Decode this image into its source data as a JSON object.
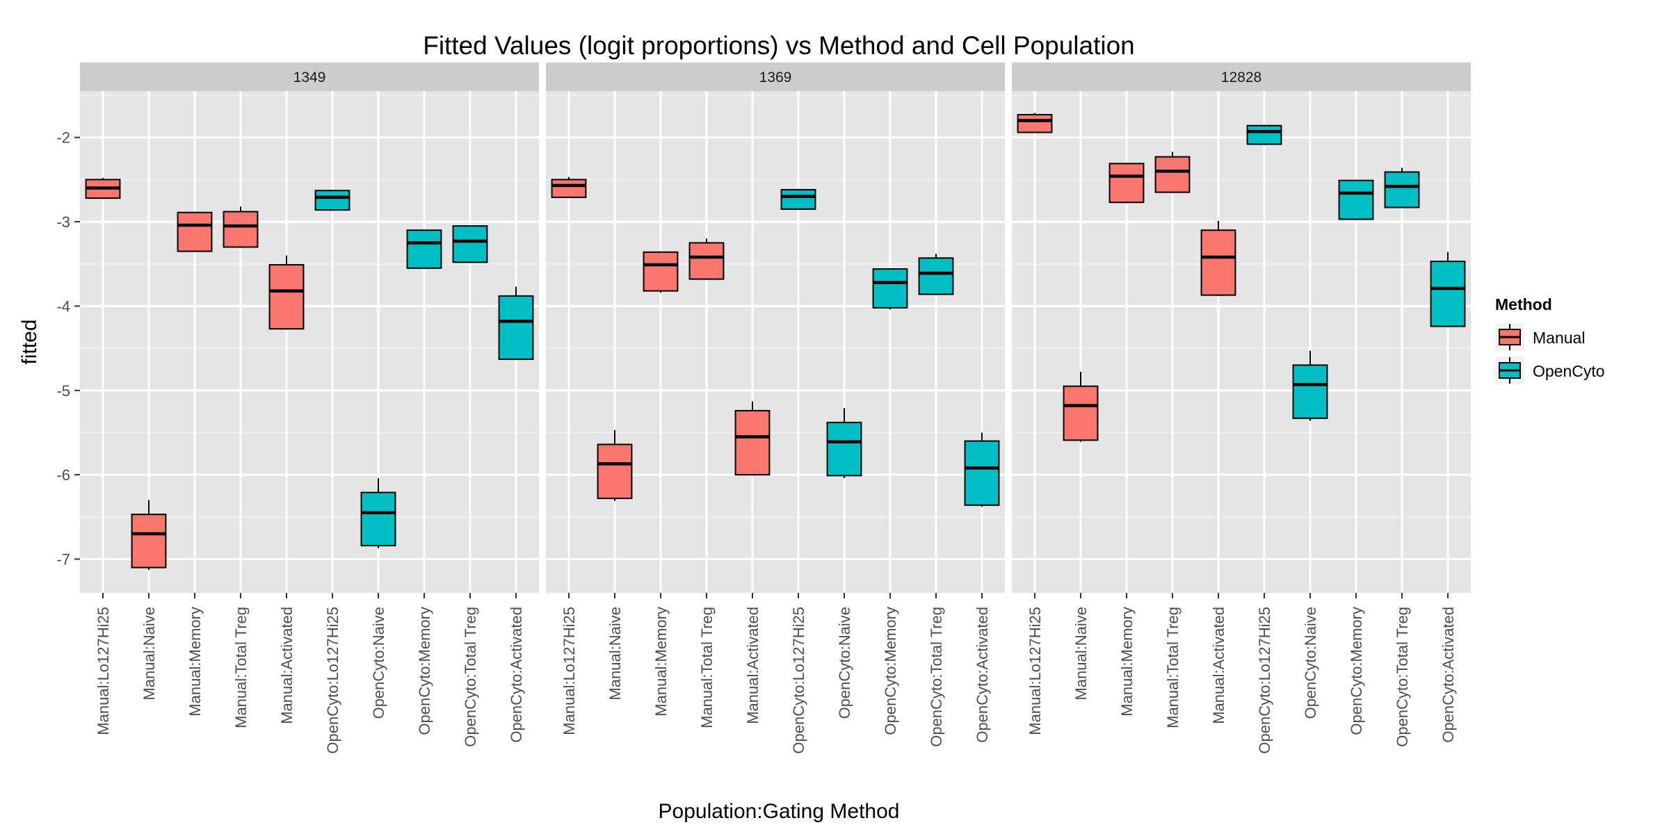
{
  "chart_data": {
    "type": "box",
    "title": "Fitted Values (logit proportions) vs Method and Cell Population",
    "xlabel": "Population:Gating Method",
    "ylabel": "fitted",
    "ylim": [
      -7.4,
      -1.45
    ],
    "yticks": [
      -7,
      -6,
      -5,
      -4,
      -3,
      -2
    ],
    "ytick_labels": [
      "-7",
      "-6",
      "-5",
      "-4",
      "-3",
      "-2"
    ],
    "grid": true,
    "categories": [
      "Manual:Lo127Hi25",
      "Manual:Naive",
      "Manual:Memory",
      "Manual:Total Treg",
      "Manual:Activated",
      "OpenCyto:Lo127Hi25",
      "OpenCyto:Naive",
      "OpenCyto:Memory",
      "OpenCyto:Total Treg",
      "OpenCyto:Activated"
    ],
    "category_method": [
      "Manual",
      "Manual",
      "Manual",
      "Manual",
      "Manual",
      "OpenCyto",
      "OpenCyto",
      "OpenCyto",
      "OpenCyto",
      "OpenCyto"
    ],
    "legend": {
      "title": "Method",
      "position": "right",
      "items": [
        {
          "label": "Manual",
          "color": "#f8766d"
        },
        {
          "label": "OpenCyto",
          "color": "#00bfc4"
        }
      ]
    },
    "panels": [
      {
        "label": "1349",
        "boxes": [
          {
            "lower_whisker": -2.73,
            "q1": -2.72,
            "median": -2.6,
            "q3": -2.5,
            "upper_whisker": -2.48
          },
          {
            "lower_whisker": -7.13,
            "q1": -7.1,
            "median": -6.7,
            "q3": -6.47,
            "upper_whisker": -6.3
          },
          {
            "lower_whisker": -3.36,
            "q1": -3.35,
            "median": -3.04,
            "q3": -2.89,
            "upper_whisker": -2.88
          },
          {
            "lower_whisker": -3.31,
            "q1": -3.3,
            "median": -3.05,
            "q3": -2.88,
            "upper_whisker": -2.82
          },
          {
            "lower_whisker": -4.28,
            "q1": -4.27,
            "median": -3.82,
            "q3": -3.51,
            "upper_whisker": -3.4
          },
          {
            "lower_whisker": -2.87,
            "q1": -2.86,
            "median": -2.71,
            "q3": -2.63,
            "upper_whisker": -2.62
          },
          {
            "lower_whisker": -6.87,
            "q1": -6.84,
            "median": -6.45,
            "q3": -6.21,
            "upper_whisker": -6.04
          },
          {
            "lower_whisker": -3.56,
            "q1": -3.55,
            "median": -3.25,
            "q3": -3.1,
            "upper_whisker": -3.09
          },
          {
            "lower_whisker": -3.49,
            "q1": -3.48,
            "median": -3.23,
            "q3": -3.05,
            "upper_whisker": -3.05
          },
          {
            "lower_whisker": -4.64,
            "q1": -4.63,
            "median": -4.18,
            "q3": -3.88,
            "upper_whisker": -3.77
          }
        ]
      },
      {
        "label": "1369",
        "boxes": [
          {
            "lower_whisker": -2.72,
            "q1": -2.71,
            "median": -2.57,
            "q3": -2.5,
            "upper_whisker": -2.47
          },
          {
            "lower_whisker": -6.31,
            "q1": -6.28,
            "median": -5.87,
            "q3": -5.64,
            "upper_whisker": -5.47
          },
          {
            "lower_whisker": -3.84,
            "q1": -3.82,
            "median": -3.51,
            "q3": -3.36,
            "upper_whisker": -3.35
          },
          {
            "lower_whisker": -3.69,
            "q1": -3.68,
            "median": -3.42,
            "q3": -3.25,
            "upper_whisker": -3.2
          },
          {
            "lower_whisker": -6.01,
            "q1": -6.0,
            "median": -5.55,
            "q3": -5.24,
            "upper_whisker": -5.13
          },
          {
            "lower_whisker": -2.86,
            "q1": -2.85,
            "median": -2.7,
            "q3": -2.62,
            "upper_whisker": -2.61
          },
          {
            "lower_whisker": -6.04,
            "q1": -6.01,
            "median": -5.61,
            "q3": -5.38,
            "upper_whisker": -5.21
          },
          {
            "lower_whisker": -4.04,
            "q1": -4.02,
            "median": -3.72,
            "q3": -3.56,
            "upper_whisker": -3.55
          },
          {
            "lower_whisker": -3.87,
            "q1": -3.86,
            "median": -3.61,
            "q3": -3.43,
            "upper_whisker": -3.38
          },
          {
            "lower_whisker": -6.38,
            "q1": -6.36,
            "median": -5.92,
            "q3": -5.6,
            "upper_whisker": -5.5
          }
        ]
      },
      {
        "label": "12828",
        "boxes": [
          {
            "lower_whisker": -1.95,
            "q1": -1.94,
            "median": -1.8,
            "q3": -1.73,
            "upper_whisker": -1.71
          },
          {
            "lower_whisker": -5.61,
            "q1": -5.59,
            "median": -5.18,
            "q3": -4.95,
            "upper_whisker": -4.78
          },
          {
            "lower_whisker": -2.78,
            "q1": -2.77,
            "median": -2.46,
            "q3": -2.31,
            "upper_whisker": -2.3
          },
          {
            "lower_whisker": -2.66,
            "q1": -2.65,
            "median": -2.4,
            "q3": -2.23,
            "upper_whisker": -2.17
          },
          {
            "lower_whisker": -3.88,
            "q1": -3.87,
            "median": -3.42,
            "q3": -3.1,
            "upper_whisker": -2.99
          },
          {
            "lower_whisker": -2.09,
            "q1": -2.08,
            "median": -1.93,
            "q3": -1.86,
            "upper_whisker": -1.85
          },
          {
            "lower_whisker": -5.36,
            "q1": -5.33,
            "median": -4.93,
            "q3": -4.7,
            "upper_whisker": -4.53
          },
          {
            "lower_whisker": -2.98,
            "q1": -2.97,
            "median": -2.66,
            "q3": -2.51,
            "upper_whisker": -2.5
          },
          {
            "lower_whisker": -2.84,
            "q1": -2.83,
            "median": -2.58,
            "q3": -2.41,
            "upper_whisker": -2.36
          },
          {
            "lower_whisker": -4.25,
            "q1": -4.24,
            "median": -3.79,
            "q3": -3.47,
            "upper_whisker": -3.36
          }
        ]
      }
    ]
  },
  "colors": {
    "panel_background": "#e5e5e5",
    "strip_background": "#cccccc",
    "gridline": "#ffffff",
    "box_outline": "#000000"
  }
}
